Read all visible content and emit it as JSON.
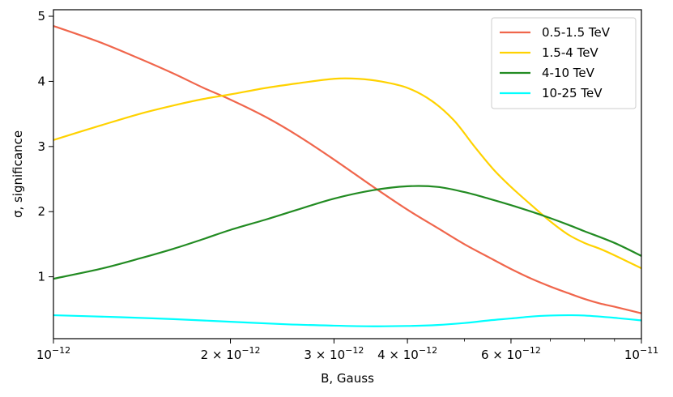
{
  "chart_data": {
    "type": "line",
    "xlabel": "B, Gauss",
    "ylabel": "σ, significance",
    "x_scale": "log",
    "xlim": [
      1e-12,
      1e-11
    ],
    "ylim": [
      0.05,
      5.1
    ],
    "grid": false,
    "legend_position": "top-right",
    "x_ticks": [
      {
        "value": 1e-12,
        "label": "10",
        "sup": "−12"
      },
      {
        "value": 2e-12,
        "label": "2 × 10",
        "sup": "−12"
      },
      {
        "value": 3e-12,
        "label": "3 × 10",
        "sup": "−12"
      },
      {
        "value": 4e-12,
        "label": "4 × 10",
        "sup": "−12"
      },
      {
        "value": 6e-12,
        "label": "6 × 10",
        "sup": "−12"
      },
      {
        "value": 1e-11,
        "label": "10",
        "sup": "−11"
      }
    ],
    "y_ticks": [
      {
        "value": 1,
        "label": "1"
      },
      {
        "value": 2,
        "label": "2"
      },
      {
        "value": 3,
        "label": "3"
      },
      {
        "value": 4,
        "label": "4"
      },
      {
        "value": 5,
        "label": "5"
      }
    ],
    "series": [
      {
        "name": "0.5-1.5 TeV",
        "color": "#f0664c",
        "points": [
          [
            1e-12,
            4.85
          ],
          [
            1.2e-12,
            4.6
          ],
          [
            1.4e-12,
            4.35
          ],
          [
            1.6e-12,
            4.12
          ],
          [
            1.8e-12,
            3.9
          ],
          [
            2e-12,
            3.72
          ],
          [
            2.3e-12,
            3.45
          ],
          [
            2.6e-12,
            3.17
          ],
          [
            3e-12,
            2.8
          ],
          [
            3.5e-12,
            2.38
          ],
          [
            4e-12,
            2.03
          ],
          [
            4.5e-12,
            1.75
          ],
          [
            5e-12,
            1.5
          ],
          [
            5.5e-12,
            1.3
          ],
          [
            6e-12,
            1.12
          ],
          [
            6.5e-12,
            0.97
          ],
          [
            7e-12,
            0.85
          ],
          [
            7.5e-12,
            0.75
          ],
          [
            8e-12,
            0.66
          ],
          [
            8.5e-12,
            0.59
          ],
          [
            9e-12,
            0.54
          ],
          [
            1e-11,
            0.44
          ]
        ]
      },
      {
        "name": "1.5-4 TeV",
        "color": "#ffd200",
        "points": [
          [
            1e-12,
            3.1
          ],
          [
            1.2e-12,
            3.32
          ],
          [
            1.4e-12,
            3.5
          ],
          [
            1.6e-12,
            3.63
          ],
          [
            1.8e-12,
            3.73
          ],
          [
            2e-12,
            3.8
          ],
          [
            2.3e-12,
            3.9
          ],
          [
            2.6e-12,
            3.97
          ],
          [
            3e-12,
            4.04
          ],
          [
            3.3e-12,
            4.04
          ],
          [
            3.6e-12,
            4.0
          ],
          [
            4e-12,
            3.9
          ],
          [
            4.4e-12,
            3.7
          ],
          [
            4.8e-12,
            3.4
          ],
          [
            5.2e-12,
            3.0
          ],
          [
            5.6e-12,
            2.65
          ],
          [
            6e-12,
            2.38
          ],
          [
            6.5e-12,
            2.1
          ],
          [
            7e-12,
            1.85
          ],
          [
            7.5e-12,
            1.65
          ],
          [
            8e-12,
            1.52
          ],
          [
            8.5e-12,
            1.43
          ],
          [
            9e-12,
            1.33
          ],
          [
            1e-11,
            1.13
          ]
        ]
      },
      {
        "name": "4-10 TeV",
        "color": "#228b22",
        "points": [
          [
            1e-12,
            0.97
          ],
          [
            1.2e-12,
            1.12
          ],
          [
            1.4e-12,
            1.28
          ],
          [
            1.6e-12,
            1.43
          ],
          [
            1.8e-12,
            1.58
          ],
          [
            2e-12,
            1.72
          ],
          [
            2.3e-12,
            1.88
          ],
          [
            2.6e-12,
            2.03
          ],
          [
            3e-12,
            2.2
          ],
          [
            3.5e-12,
            2.33
          ],
          [
            4e-12,
            2.39
          ],
          [
            4.5e-12,
            2.38
          ],
          [
            5e-12,
            2.3
          ],
          [
            5.5e-12,
            2.2
          ],
          [
            6e-12,
            2.1
          ],
          [
            6.5e-12,
            2.0
          ],
          [
            7e-12,
            1.9
          ],
          [
            7.5e-12,
            1.8
          ],
          [
            8e-12,
            1.7
          ],
          [
            9e-12,
            1.52
          ],
          [
            1e-11,
            1.32
          ]
        ]
      },
      {
        "name": "10-25 TeV",
        "color": "#00ffff",
        "points": [
          [
            1e-12,
            0.41
          ],
          [
            1.3e-12,
            0.38
          ],
          [
            1.6e-12,
            0.35
          ],
          [
            2e-12,
            0.31
          ],
          [
            2.5e-12,
            0.27
          ],
          [
            3e-12,
            0.25
          ],
          [
            3.5e-12,
            0.24
          ],
          [
            4e-12,
            0.245
          ],
          [
            4.5e-12,
            0.26
          ],
          [
            5e-12,
            0.29
          ],
          [
            5.5e-12,
            0.33
          ],
          [
            6e-12,
            0.36
          ],
          [
            6.5e-12,
            0.39
          ],
          [
            7e-12,
            0.405
          ],
          [
            7.5e-12,
            0.41
          ],
          [
            8e-12,
            0.405
          ],
          [
            9e-12,
            0.37
          ],
          [
            1e-11,
            0.33
          ]
        ]
      }
    ]
  }
}
